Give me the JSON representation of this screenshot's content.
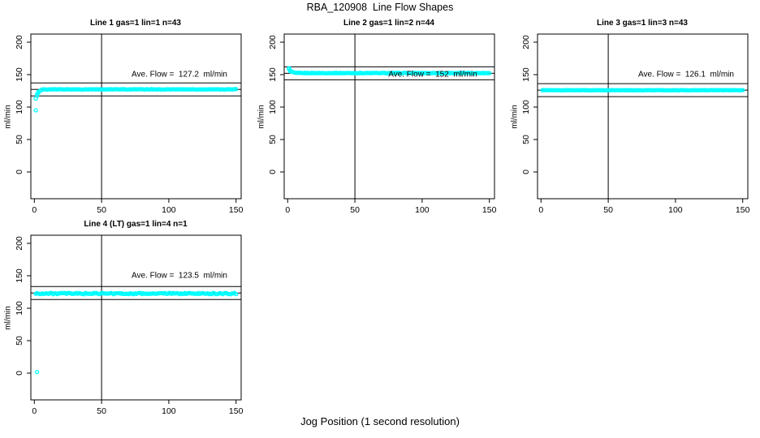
{
  "figure": {
    "title": "RBA_120908  Line Flow Shapes",
    "xlabel": "Jog Position (1 second resolution)",
    "colors": {
      "background": "#ffffff",
      "points": "#00ffff",
      "axis": "#000000",
      "text": "#000000"
    }
  },
  "chart_data": [
    {
      "type": "scatter",
      "title": "Line 1 gas=1 lin=1 n=43",
      "gas": 1,
      "lin": 1,
      "n": 43,
      "ylabel": "ml/min",
      "annotation": "Ave. Flow =  127.2  ml/min",
      "ave_flow_ml_min": 127.2,
      "xlim": [
        0,
        150
      ],
      "ylim": [
        0,
        200
      ],
      "xticks": [
        0,
        50,
        100,
        150
      ],
      "yticks": [
        0,
        50,
        100,
        150,
        200
      ],
      "vline_x": 50,
      "hline_upper": 137.2,
      "hline_mean": 127.2,
      "hline_lower": 117.2,
      "grid": false,
      "series": [
        {
          "name": "line-1-flow-shape",
          "marker": "open-circle",
          "color": "#00ffff",
          "anchors": [
            [
              1,
              95
            ],
            [
              1,
              113
            ],
            [
              2,
              117
            ],
            [
              2,
              120
            ],
            [
              3,
              122
            ],
            [
              3,
              123.5
            ],
            [
              4,
              125
            ],
            [
              5,
              126
            ]
          ],
          "plateau": {
            "x_from": 6,
            "x_to": 150,
            "value": 127.3,
            "noise": 0.4
          }
        }
      ]
    },
    {
      "type": "scatter",
      "title": "Line 2 gas=1 lin=2 n=44",
      "gas": 1,
      "lin": 2,
      "n": 44,
      "ylabel": "ml/min",
      "annotation": "Ave. Flow =  152  ml/min",
      "ave_flow_ml_min": 152,
      "xlim": [
        0,
        150
      ],
      "ylim": [
        0,
        200
      ],
      "xticks": [
        0,
        50,
        100,
        150
      ],
      "yticks": [
        0,
        50,
        100,
        150,
        200
      ],
      "vline_x": 50,
      "hline_upper": 162,
      "hline_mean": 152,
      "hline_lower": 142,
      "grid": false,
      "series": [
        {
          "name": "line-2-flow-shape",
          "marker": "open-circle",
          "color": "#00ffff",
          "anchors": [
            [
              1,
              160
            ],
            [
              1,
              158
            ],
            [
              2,
              156.5
            ],
            [
              2,
              155
            ],
            [
              3,
              154.5
            ],
            [
              4,
              153.8
            ],
            [
              5,
              153.2
            ]
          ],
          "plateau": {
            "x_from": 6,
            "x_to": 150,
            "value": 152.4,
            "noise": 0.5
          }
        }
      ]
    },
    {
      "type": "scatter",
      "title": "Line 3 gas=1 lin=3 n=43",
      "gas": 1,
      "lin": 3,
      "n": 43,
      "ylabel": "ml/min",
      "annotation": "Ave. Flow =  126.1  ml/min",
      "ave_flow_ml_min": 126.1,
      "xlim": [
        0,
        150
      ],
      "ylim": [
        0,
        200
      ],
      "xticks": [
        0,
        50,
        100,
        150
      ],
      "yticks": [
        0,
        50,
        100,
        150,
        200
      ],
      "vline_x": 50,
      "hline_upper": 136.1,
      "hline_mean": 126.1,
      "hline_lower": 116.1,
      "grid": false,
      "series": [
        {
          "name": "line-3-flow-shape",
          "marker": "open-circle",
          "color": "#00ffff",
          "anchors": [],
          "plateau": {
            "x_from": 1,
            "x_to": 150,
            "value": 126.0,
            "noise": 0.25
          }
        }
      ]
    },
    {
      "type": "scatter",
      "title": "Line 4 (LT) gas=1 lin=4 n=1",
      "gas": 1,
      "lin": 4,
      "n": 1,
      "ylabel": "ml/min",
      "annotation": "Ave. Flow =  123.5  ml/min",
      "ave_flow_ml_min": 123.5,
      "xlim": [
        0,
        150
      ],
      "ylim": [
        0,
        200
      ],
      "xticks": [
        0,
        50,
        100,
        150
      ],
      "yticks": [
        0,
        50,
        100,
        150,
        200
      ],
      "vline_x": 50,
      "hline_upper": 133.5,
      "hline_mean": 123.5,
      "hline_lower": 113.5,
      "grid": false,
      "series": [
        {
          "name": "line-4-flow-shape",
          "marker": "open-circle",
          "color": "#00ffff",
          "anchors": [
            [
              2,
              1.5
            ]
          ],
          "plateau": {
            "x_from": 1,
            "x_to": 150,
            "value": 122.6,
            "noise": 1.0
          }
        }
      ]
    }
  ]
}
